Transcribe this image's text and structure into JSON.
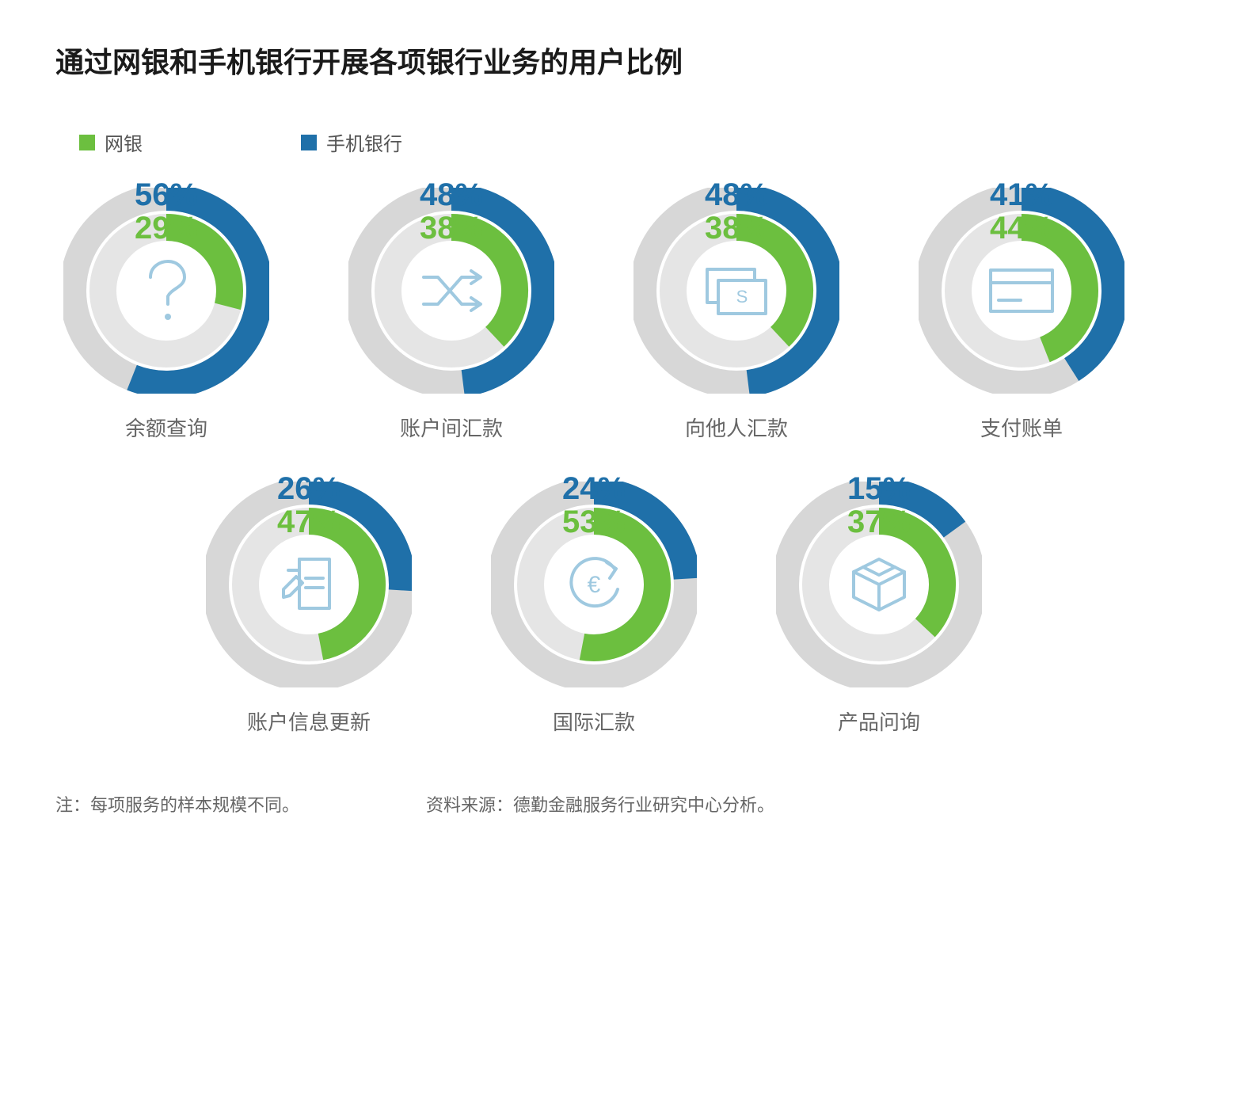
{
  "title": "通过网银和手机银行开展各项银行业务的用户比例",
  "legend": {
    "series1": {
      "label": "网银",
      "color": "#6cbf3f"
    },
    "series2": {
      "label": "手机银行",
      "color": "#1f70a9"
    }
  },
  "palette": {
    "inner_track": "#e5e5e5",
    "outer_track": "#d7d7d7",
    "inner_fill": "#6cbf3f",
    "outer_fill": "#1f70a9",
    "icon_stroke": "#9fc9e0",
    "background": "#ffffff",
    "text_label": "#666666"
  },
  "donut_style": {
    "size": 260,
    "outer_radius": 118,
    "inner_radius": 80,
    "stroke_width_outer": 34,
    "stroke_width_inner": 34,
    "start_angle_deg": 0,
    "direction": "clockwise",
    "value_fontsize": 40,
    "value_fontweight": 700,
    "label_fontsize": 26
  },
  "items": [
    {
      "label": "余额查询",
      "inner_pct": 29,
      "outer_pct": 56,
      "icon": "question"
    },
    {
      "label": "账户间汇款",
      "inner_pct": 38,
      "outer_pct": 48,
      "icon": "shuffle"
    },
    {
      "label": "向他人汇款",
      "inner_pct": 38,
      "outer_pct": 48,
      "icon": "cards"
    },
    {
      "label": "支付账单",
      "inner_pct": 44,
      "outer_pct": 41,
      "icon": "creditcard"
    },
    {
      "label": "账户信息更新",
      "inner_pct": 47,
      "outer_pct": 26,
      "icon": "document"
    },
    {
      "label": "国际汇款",
      "inner_pct": 53,
      "outer_pct": 24,
      "icon": "refresh-euro"
    },
    {
      "label": "产品问询",
      "inner_pct": 37,
      "outer_pct": 15,
      "icon": "box"
    }
  ],
  "footer": {
    "note": "注：每项服务的样本规模不同。",
    "source": "资料来源：德勤金融服务行业研究中心分析。"
  }
}
